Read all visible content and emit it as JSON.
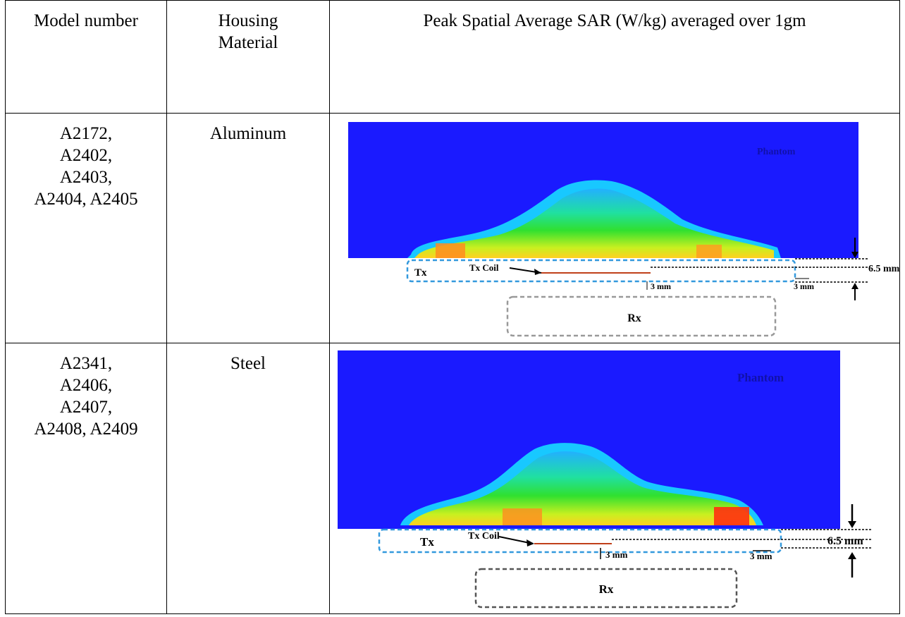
{
  "table": {
    "headers": {
      "model": "Model number",
      "housing_line1": "Housing",
      "housing_line2": "Material",
      "sar": "Peak Spatial Average SAR (W/kg) averaged over 1gm"
    },
    "rows": [
      {
        "models": [
          "A2172,",
          "A2402,",
          "A2403,",
          "A2404, A2405"
        ],
        "material": "Aluminum",
        "figure": {
          "phantom_label": "Phantom",
          "tx_label": "Tx",
          "tx_coil_label": "Tx Coil",
          "rx_label": "Rx",
          "dim_thickness": "6.5 mm",
          "dim_gap_a": "3 mm",
          "dim_gap_b": "3 mm"
        }
      },
      {
        "models": [
          "A2341,",
          "A2406,",
          "A2407,",
          "A2408, A2409"
        ],
        "material": "Steel",
        "figure": {
          "phantom_label": "Phantom",
          "tx_label": "Tx",
          "tx_coil_label": "Tx Coil",
          "rx_label": "Rx",
          "dim_thickness": "6.5 mm",
          "dim_gap_a": "3 mm",
          "dim_gap_b": "3 mm"
        }
      }
    ]
  },
  "colors": {
    "phantom_blue": "#1a1aff",
    "tx_outline": "#3399dd",
    "rx_outline_a": "#999999",
    "rx_outline_b": "#555555",
    "coil": "#c0401a"
  }
}
